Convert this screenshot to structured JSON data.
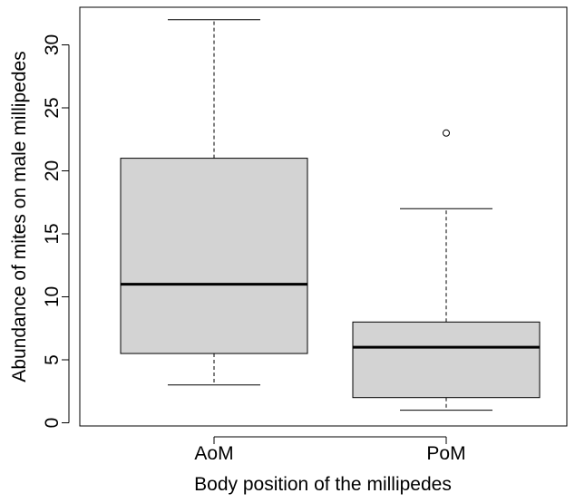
{
  "chart_data": {
    "type": "box",
    "title": "",
    "xlabel": "Body position of the millipedes",
    "ylabel": "Abundance of mites on male millipedes",
    "ylim": [
      0,
      32
    ],
    "yticks": [
      0,
      5,
      10,
      15,
      20,
      25,
      30
    ],
    "grid": false,
    "legend": "none",
    "box_fill": "#d3d3d3",
    "line_color": "#000000",
    "categories": [
      "AoM",
      "PoM"
    ],
    "boxes": [
      {
        "category": "AoM",
        "whisker_low": 3,
        "q1": 5.5,
        "median": 11,
        "q3": 21,
        "whisker_high": 32,
        "outliers": []
      },
      {
        "category": "PoM",
        "whisker_low": 1,
        "q1": 2,
        "median": 6,
        "q3": 8,
        "whisker_high": 17,
        "outliers": [
          23
        ]
      }
    ]
  }
}
